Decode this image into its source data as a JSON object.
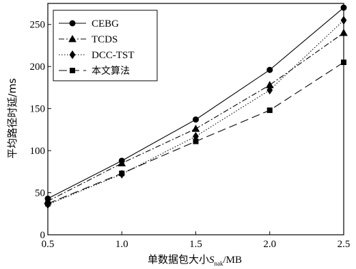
{
  "chart_data": {
    "type": "line",
    "xlabel": "单数据包大小S_nak/MB",
    "xlabel_parts": {
      "main": "单数据包大小",
      "var": "S",
      "sub": "nak",
      "unit": "/MB"
    },
    "ylabel": "平均路径时延/ms",
    "x": [
      0.5,
      1.0,
      1.5,
      2.0,
      2.5
    ],
    "xlim": [
      0.5,
      2.5
    ],
    "ylim": [
      0,
      275
    ],
    "x_ticks": [
      "0.5",
      "1.0",
      "1.5",
      "2.0",
      "2.5"
    ],
    "y_ticks": [
      "0",
      "50",
      "100",
      "150",
      "200",
      "250"
    ],
    "x_tick_values": [
      0.5,
      1.0,
      1.5,
      2.0,
      2.5
    ],
    "y_tick_values": [
      0,
      50,
      100,
      150,
      200,
      250
    ],
    "grid": false,
    "legend_position": "top-left",
    "series": [
      {
        "name": "CEBG",
        "values": [
          43,
          88,
          137,
          196,
          270
        ],
        "marker": "circle",
        "dash": "solid",
        "color": "#000000"
      },
      {
        "name": "TCDS",
        "values": [
          40,
          85,
          126,
          178,
          240
        ],
        "marker": "triangle",
        "dash": "dashdot",
        "color": "#000000"
      },
      {
        "name": "DCC-TST",
        "values": [
          36,
          72,
          117,
          172,
          255
        ],
        "marker": "diamond",
        "dash": "dotted",
        "color": "#000000"
      },
      {
        "name": "本文算法",
        "values": [
          37,
          73,
          111,
          148,
          205
        ],
        "marker": "square",
        "dash": "dashed",
        "color": "#000000"
      }
    ]
  }
}
